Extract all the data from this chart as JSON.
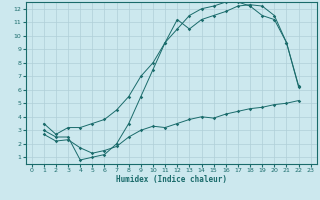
{
  "xlabel": "Humidex (Indice chaleur)",
  "bg_color": "#cce8ee",
  "grid_color": "#b0cfd8",
  "line_color": "#1a6b6b",
  "xlim": [
    -0.5,
    23.5
  ],
  "ylim": [
    0.5,
    12.5
  ],
  "xticks": [
    0,
    1,
    2,
    3,
    4,
    5,
    6,
    7,
    8,
    9,
    10,
    11,
    12,
    13,
    14,
    15,
    16,
    17,
    18,
    19,
    20,
    21,
    22,
    23
  ],
  "yticks": [
    1,
    2,
    3,
    4,
    5,
    6,
    7,
    8,
    9,
    10,
    11,
    12
  ],
  "line1_x": [
    1,
    2,
    3,
    4,
    5,
    6,
    7,
    8,
    9,
    10,
    11,
    12,
    13,
    14,
    15,
    16,
    17,
    18,
    19,
    20,
    21,
    22
  ],
  "line1_y": [
    3.5,
    2.7,
    3.2,
    3.2,
    3.5,
    3.8,
    4.5,
    5.5,
    7.0,
    8.0,
    9.5,
    10.5,
    11.5,
    12.0,
    12.2,
    12.5,
    12.5,
    12.2,
    11.5,
    11.2,
    9.5,
    6.3
  ],
  "line2_x": [
    1,
    2,
    3,
    4,
    5,
    6,
    7,
    8,
    9,
    10,
    11,
    12,
    13,
    14,
    15,
    16,
    17,
    18,
    19,
    20,
    21,
    22
  ],
  "line2_y": [
    3.0,
    2.5,
    2.5,
    0.8,
    1.0,
    1.2,
    2.0,
    3.5,
    5.5,
    7.5,
    9.5,
    11.2,
    10.5,
    11.2,
    11.5,
    11.8,
    12.2,
    12.3,
    12.2,
    11.5,
    9.5,
    6.2
  ],
  "line3_x": [
    1,
    2,
    3,
    4,
    5,
    6,
    7,
    8,
    9,
    10,
    11,
    12,
    13,
    14,
    15,
    16,
    17,
    18,
    19,
    20,
    21,
    22
  ],
  "line3_y": [
    2.7,
    2.2,
    2.3,
    1.7,
    1.3,
    1.5,
    1.8,
    2.5,
    3.0,
    3.3,
    3.2,
    3.5,
    3.8,
    4.0,
    3.9,
    4.2,
    4.4,
    4.6,
    4.7,
    4.9,
    5.0,
    5.2
  ]
}
